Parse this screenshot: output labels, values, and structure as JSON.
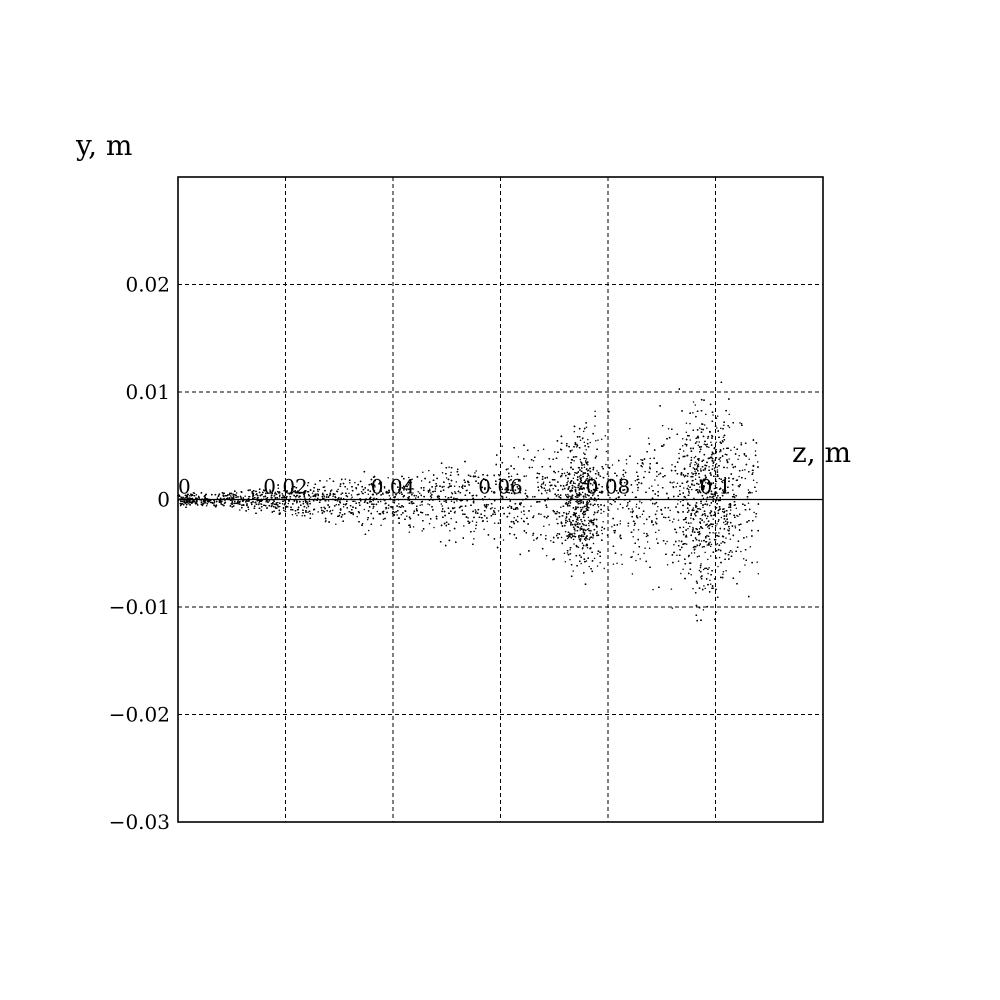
{
  "chart_data": {
    "type": "scatter",
    "xlabel": "z, m",
    "ylabel": "y, m",
    "xlim": [
      0,
      0.12
    ],
    "ylim": [
      -0.03,
      0.03
    ],
    "grid": true,
    "x_ticks": [
      0,
      0.02,
      0.04,
      0.06,
      0.08,
      0.1
    ],
    "x_tick_labels": [
      "0",
      "0.02",
      "0.04",
      "0.06",
      "0.08",
      "0.1"
    ],
    "y_ticks": [
      0.02,
      0.01,
      0,
      -0.01,
      -0.02,
      -0.03
    ],
    "y_tick_labels": [
      "0.02",
      "0.01",
      "0",
      "−0.01",
      "−0.02",
      "−0.03"
    ],
    "point_color": "#000000",
    "envelope": {
      "z": [
        0,
        0.01,
        0.02,
        0.03,
        0.04,
        0.05,
        0.06,
        0.07,
        0.075,
        0.08,
        0.085,
        0.09,
        0.095,
        0.1,
        0.105,
        0.108
      ],
      "y_max": [
        0.0008,
        0.0012,
        0.0018,
        0.0028,
        0.0032,
        0.0048,
        0.0055,
        0.007,
        0.0095,
        0.0092,
        0.0085,
        0.01,
        0.012,
        0.013,
        0.011,
        0.009
      ],
      "y_min": [
        -0.0008,
        -0.0012,
        -0.0022,
        -0.0032,
        -0.0036,
        -0.005,
        -0.0062,
        -0.0082,
        -0.0092,
        -0.009,
        -0.0085,
        -0.0108,
        -0.013,
        -0.0135,
        -0.011,
        -0.0095
      ]
    }
  }
}
